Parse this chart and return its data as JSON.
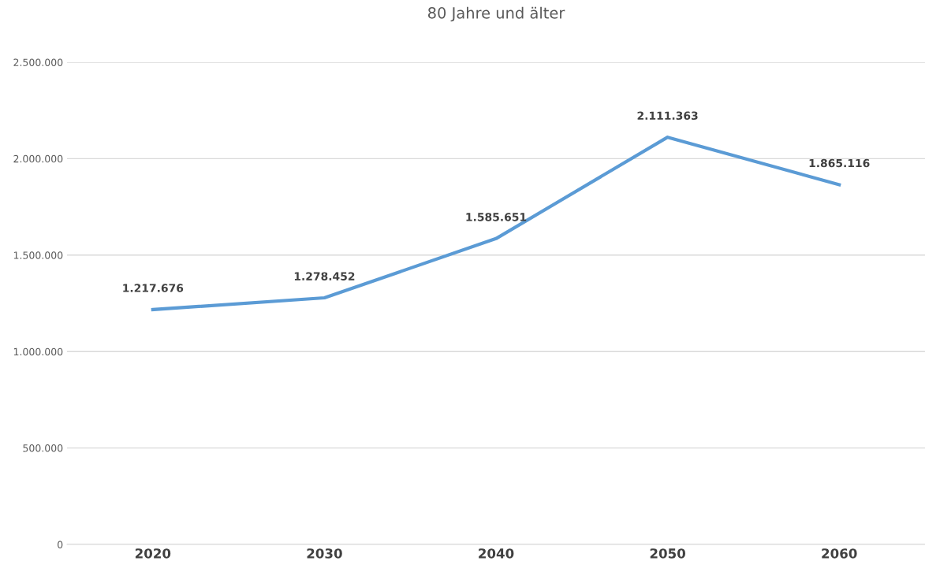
{
  "chart_data": {
    "type": "line",
    "title": "80 Jahre und älter",
    "categories": [
      "2020",
      "2030",
      "2040",
      "2050",
      "2060"
    ],
    "series": [
      {
        "color": "#5b9bd5",
        "values": [
          1217676,
          1278452,
          1585651,
          2111363,
          1865116
        ],
        "value_labels": [
          "1.217.676",
          "1.278.452",
          "1.585.651",
          "2.111.363",
          "1.865.116"
        ]
      }
    ],
    "ylim": [
      0,
      2500000
    ],
    "yticks": [
      0,
      {
        "value": 500000,
        "label": "500.000"
      },
      {
        "value": 1000000,
        "label": "1.000.000"
      },
      {
        "value": 1500000,
        "label": "1.500.000"
      },
      {
        "value": 2000000,
        "label": "2.000.000"
      },
      {
        "value": 2500000,
        "label": "2.500.000"
      }
    ],
    "grid": "y",
    "marker": "none",
    "line_style": "solid"
  }
}
